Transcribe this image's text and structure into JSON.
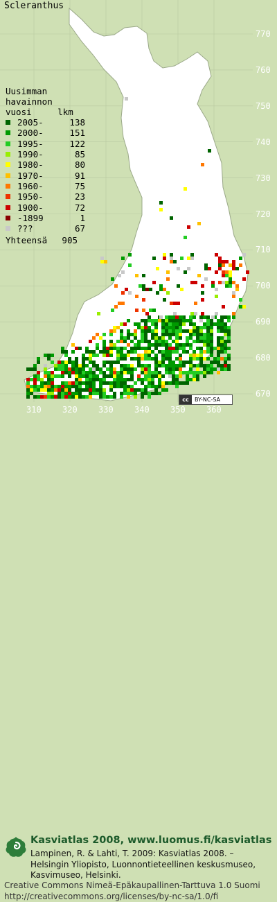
{
  "title": "Scleranthus",
  "y_ticks": [
    "770",
    "760",
    "750",
    "740",
    "730",
    "720",
    "710",
    "700",
    "690",
    "680",
    "670"
  ],
  "x_ticks": [
    "310",
    "320",
    "330",
    "340",
    "350",
    "360"
  ],
  "legend": {
    "heading_lines": [
      "Uusimman",
      "havainnon",
      "vuosi     lkm"
    ],
    "items": [
      {
        "label": "2005-",
        "count": "138",
        "color": "#006400"
      },
      {
        "label": "2000-",
        "count": "151",
        "color": "#009a00"
      },
      {
        "label": "1995-",
        "count": "122",
        "color": "#22cc22"
      },
      {
        "label": "1990-",
        "count": "85",
        "color": "#99ee00"
      },
      {
        "label": "1980-",
        "count": "80",
        "color": "#ffff00"
      },
      {
        "label": "1970-",
        "count": "91",
        "color": "#ffc000"
      },
      {
        "label": "1960-",
        "count": "75",
        "color": "#ff7700"
      },
      {
        "label": "1950-",
        "count": "23",
        "color": "#ee3300"
      },
      {
        "label": "1900-",
        "count": "72",
        "color": "#cc0000"
      },
      {
        "label": "-1899",
        "count": "1",
        "color": "#880000"
      },
      {
        "label": "???",
        "count": "67",
        "color": "#c8c8c8"
      }
    ],
    "total_label": "Yhteensä",
    "total_count": "905"
  },
  "cc_badge": {
    "symbol": "cc",
    "text": "BY-NC-SA"
  },
  "footer": {
    "line1": "Kasviatlas 2008, www.luomus.fi/kasviatlas",
    "line2": "Lampinen, R. & Lahti, T. 2009: Kasviatlas 2008. – Helsingin Yliopisto, Luonnontieteellinen keskusmuseo, Kasvimuseo, Helsinki.",
    "line3": "Creative Commons Nimeä-Epäkaupallinen-Tarttuva 1.0 Suomi",
    "line4": "http://creativecommons.org/licenses/by-nc-sa/1.0/fi"
  },
  "colors": {
    "background": "#cfe0b4",
    "land": "#ffffff",
    "grid": "#b8c8a0",
    "footer_title": "#1c5a2a"
  }
}
